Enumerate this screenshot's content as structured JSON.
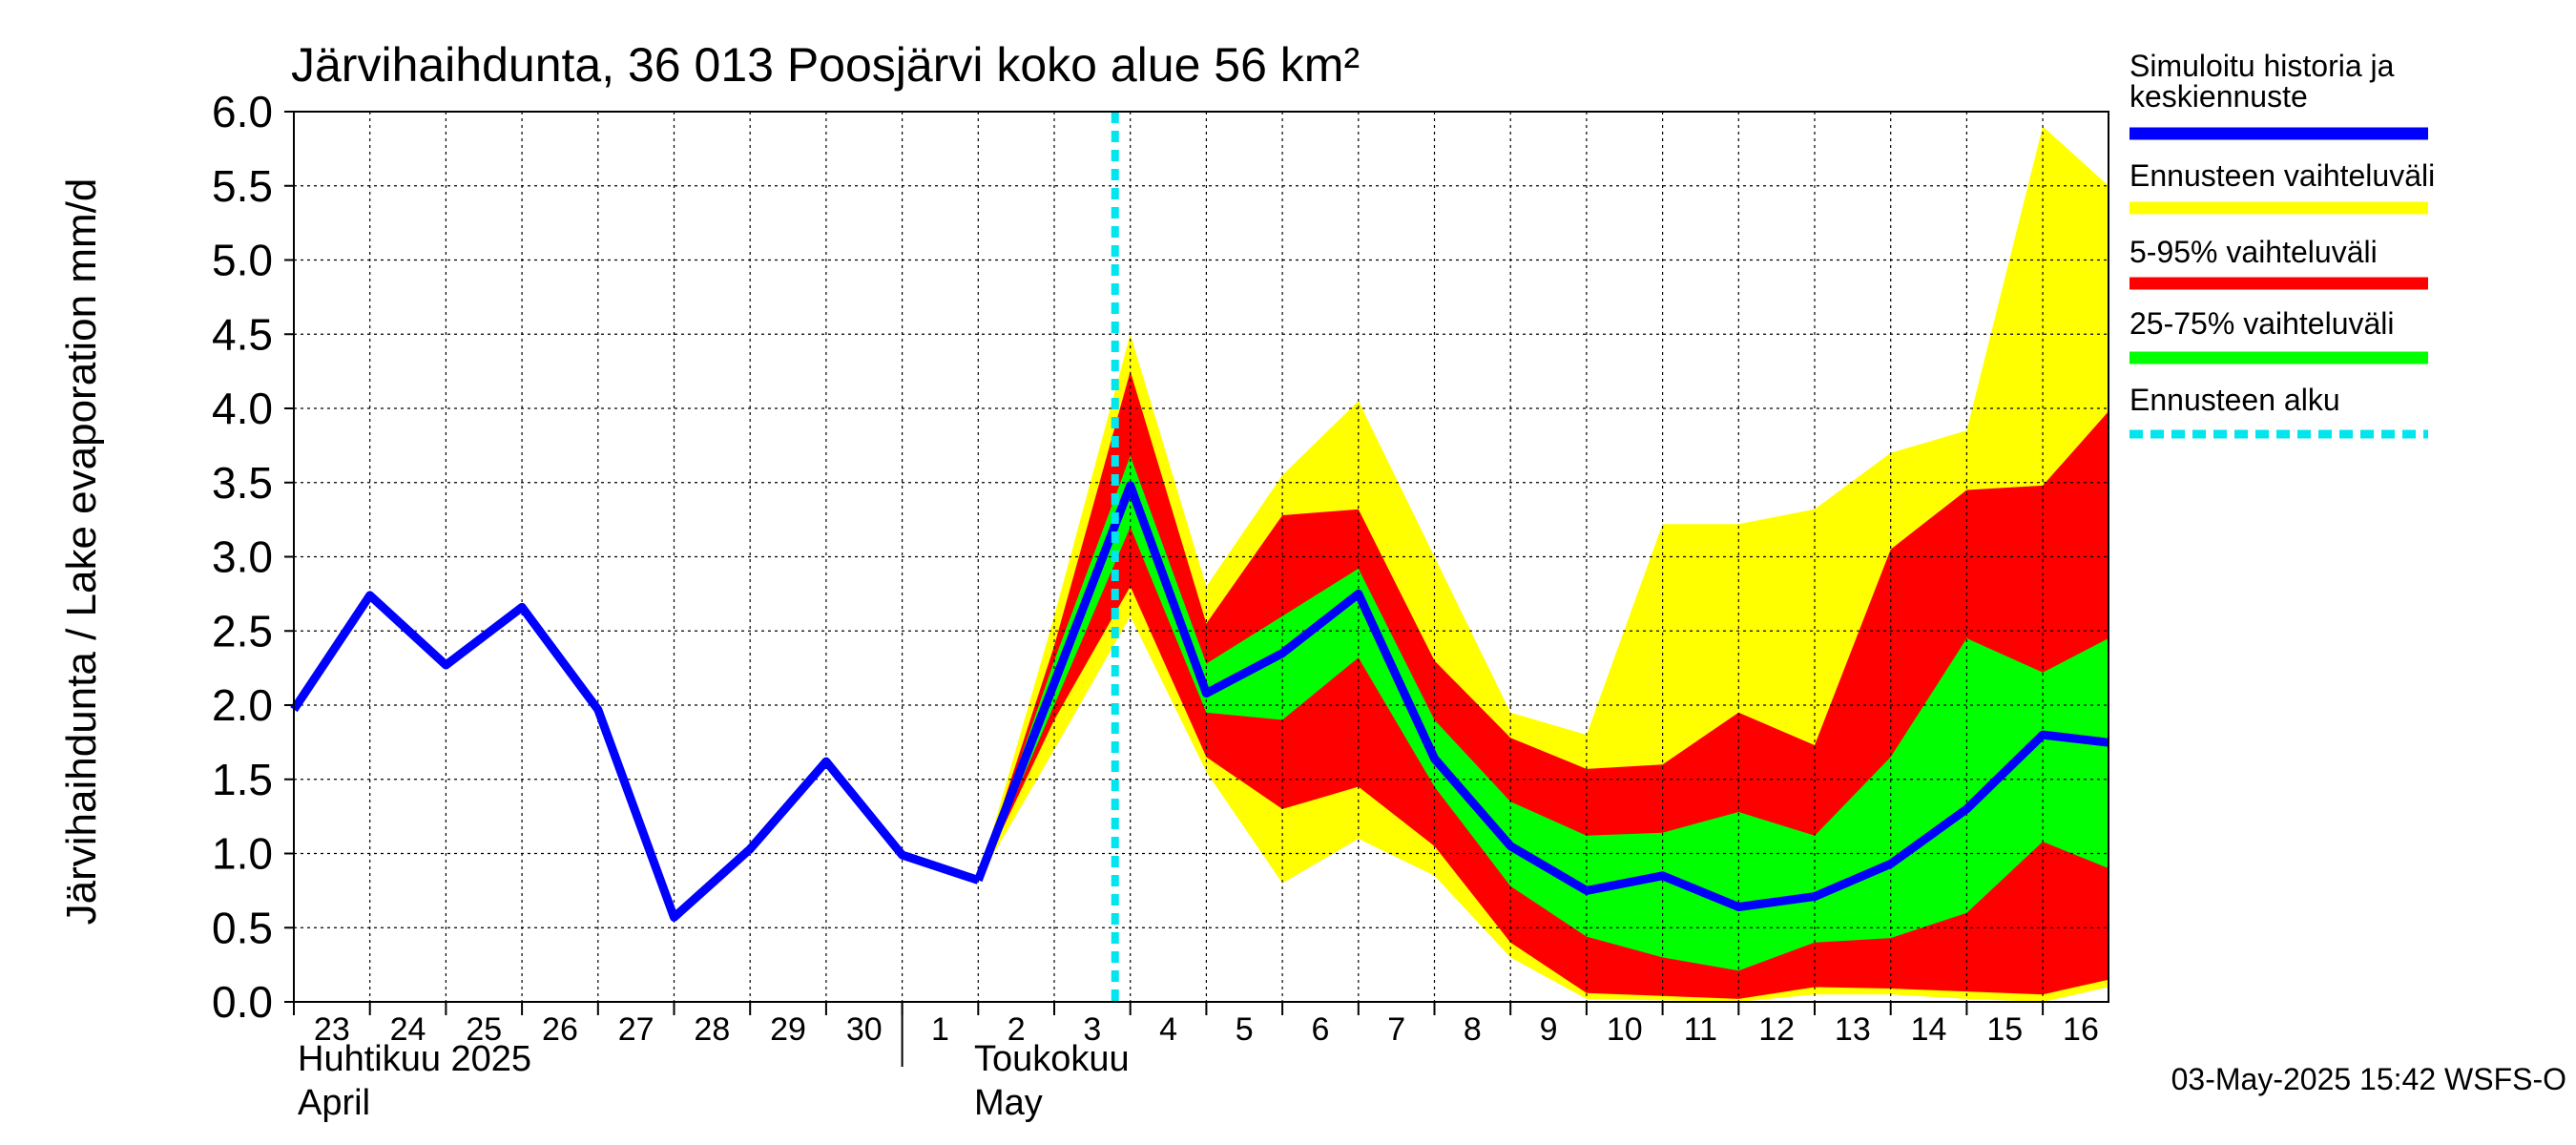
{
  "chart_data": {
    "type": "area",
    "title": "Järvihaihdunta, 36 013 Poosjärvi koko alue 56 km²",
    "ylabel": "Järvihaihdunta / Lake evaporation   mm/d",
    "ylim": [
      0,
      6
    ],
    "yticks": [
      "0.0",
      "0.5",
      "1.0",
      "1.5",
      "2.0",
      "2.5",
      "3.0",
      "3.5",
      "4.0",
      "4.5",
      "5.0",
      "5.5",
      "6.0"
    ],
    "x_days": [
      "23",
      "24",
      "25",
      "26",
      "27",
      "28",
      "29",
      "30",
      "1",
      "2",
      "3",
      "4",
      "5",
      "6",
      "7",
      "8",
      "9",
      "10",
      "11",
      "12",
      "13",
      "14",
      "15",
      "16"
    ],
    "month_labels": {
      "april_fi": "Huhtikuu  2025",
      "april_en": "April",
      "may_fi": "Toukokuu",
      "may_en": "May"
    },
    "forecast_start_index": 10.8,
    "history": {
      "x": [
        0,
        1,
        2,
        3,
        4,
        5,
        6,
        7,
        8,
        9
      ],
      "values": [
        1.97,
        2.74,
        2.27,
        2.66,
        1.97,
        0.57,
        1.03,
        1.62,
        0.99,
        0.82
      ]
    },
    "forecast_x": [
      9,
      10,
      11,
      12,
      13,
      14,
      15,
      16,
      17,
      18,
      19,
      20,
      21,
      22,
      23,
      24
    ],
    "series": [
      {
        "name": "Ennusteen vaihteluväli",
        "color": "#ffff00",
        "upper": [
          0.82,
          2.6,
          4.5,
          2.8,
          3.55,
          4.05,
          3.0,
          1.95,
          1.8,
          3.22,
          3.22,
          3.32,
          3.7,
          3.85,
          5.9,
          5.5
        ],
        "lower": [
          0.82,
          1.7,
          2.6,
          1.55,
          0.8,
          1.1,
          0.85,
          0.3,
          0.02,
          0.01,
          0.0,
          0.05,
          0.05,
          0.02,
          0.0,
          0.1
        ]
      },
      {
        "name": "5-95% vaihteluväli",
        "color": "#ff0000",
        "upper": [
          0.82,
          2.4,
          4.25,
          2.55,
          3.28,
          3.32,
          2.3,
          1.78,
          1.57,
          1.6,
          1.95,
          1.73,
          3.05,
          3.45,
          3.48,
          3.98
        ],
        "lower": [
          0.82,
          1.9,
          2.8,
          1.65,
          1.3,
          1.45,
          1.05,
          0.4,
          0.06,
          0.04,
          0.02,
          0.1,
          0.09,
          0.07,
          0.05,
          0.15
        ]
      },
      {
        "name": "25-75% vaihteluväli",
        "color": "#00ff00",
        "upper": [
          0.82,
          2.3,
          3.68,
          2.28,
          2.6,
          2.92,
          1.9,
          1.35,
          1.12,
          1.14,
          1.28,
          1.12,
          1.65,
          2.45,
          2.22,
          2.45
        ],
        "lower": [
          0.82,
          2.0,
          3.2,
          1.95,
          1.9,
          2.32,
          1.45,
          0.78,
          0.44,
          0.3,
          0.21,
          0.4,
          0.43,
          0.6,
          1.08,
          0.9
        ]
      },
      {
        "name": "Simuloitu historia ja keskiennuste",
        "color": "#0000ff",
        "values": [
          0.82,
          2.15,
          3.48,
          2.08,
          2.35,
          2.75,
          1.64,
          1.05,
          0.75,
          0.85,
          0.64,
          0.71,
          0.93,
          1.3,
          1.8,
          1.74
        ]
      }
    ],
    "legend": {
      "placement": "right",
      "entries": [
        {
          "label1": "Simuloitu historia ja",
          "label2": "keskiennuste",
          "color": "#0000ff"
        },
        {
          "label1": "Ennusteen vaihteluväli",
          "label2": "",
          "color": "#ffff00"
        },
        {
          "label1": "5-95% vaihteluväli",
          "label2": "",
          "color": "#ff0000"
        },
        {
          "label1": "25-75% vaihteluväli",
          "label2": "",
          "color": "#00ff00"
        },
        {
          "label1": "Ennusteen alku",
          "label2": "",
          "color": "#00e5ee"
        }
      ]
    },
    "timestamp": "03-May-2025 15:42 WSFS-O"
  }
}
